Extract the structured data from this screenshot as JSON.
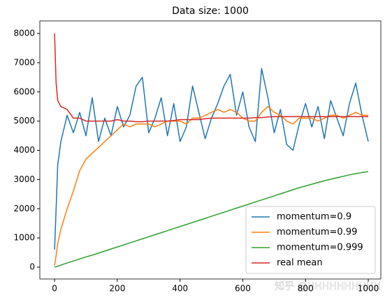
{
  "chart_data": {
    "type": "line",
    "title": "Data size: 1000",
    "x": [
      0,
      5,
      10,
      20,
      40,
      60,
      80,
      100,
      120,
      140,
      160,
      180,
      200,
      220,
      240,
      260,
      280,
      300,
      320,
      340,
      360,
      380,
      400,
      420,
      440,
      460,
      480,
      500,
      520,
      540,
      560,
      580,
      600,
      620,
      640,
      660,
      680,
      700,
      720,
      740,
      760,
      780,
      800,
      820,
      840,
      860,
      880,
      900,
      920,
      940,
      960,
      980,
      1000
    ],
    "series": [
      {
        "name": "momentum=0.9",
        "color": "#1f77b4",
        "values": [
          600,
          2000,
          3500,
          4300,
          5200,
          4600,
          5300,
          4500,
          5800,
          4300,
          5100,
          4500,
          5500,
          4800,
          5200,
          6200,
          6500,
          4600,
          5100,
          5800,
          4500,
          5600,
          4300,
          4800,
          6200,
          5300,
          4400,
          5100,
          5600,
          6200,
          6600,
          5200,
          6000,
          4800,
          4300,
          6800,
          5800,
          4600,
          5400,
          4200,
          4000,
          4900,
          5600,
          4800,
          5500,
          4400,
          5700,
          5100,
          4500,
          5600,
          6300,
          5200,
          4300
        ]
      },
      {
        "name": "momentum=0.99",
        "color": "#ff7f0e",
        "values": [
          50,
          400,
          800,
          1300,
          2000,
          2600,
          3300,
          3700,
          3900,
          4100,
          4300,
          4500,
          4700,
          4900,
          4800,
          4900,
          4900,
          4900,
          4800,
          4900,
          5000,
          5000,
          5000,
          4900,
          5100,
          5100,
          5200,
          5300,
          5400,
          5300,
          5400,
          5300,
          5100,
          5000,
          5000,
          5300,
          5500,
          5300,
          5200,
          5000,
          4900,
          5100,
          5100,
          5100,
          5000,
          5100,
          5200,
          5200,
          5100,
          5200,
          5300,
          5200,
          5200
        ]
      },
      {
        "name": "momentum=0.999",
        "color": "#2ca02c",
        "values": [
          0,
          15,
          30,
          70,
          140,
          210,
          280,
          350,
          410,
          480,
          550,
          620,
          690,
          760,
          830,
          900,
          970,
          1040,
          1110,
          1180,
          1250,
          1320,
          1390,
          1460,
          1530,
          1600,
          1670,
          1740,
          1810,
          1880,
          1950,
          2020,
          2090,
          2160,
          2230,
          2300,
          2370,
          2440,
          2510,
          2580,
          2650,
          2720,
          2780,
          2840,
          2900,
          2960,
          3010,
          3060,
          3110,
          3160,
          3200,
          3240,
          3270
        ]
      },
      {
        "name": "real mean",
        "color": "#d62728",
        "values": [
          8000,
          6300,
          5700,
          5500,
          5400,
          5100,
          5100,
          5000,
          5000,
          5000,
          5000,
          5000,
          5050,
          5000,
          5000,
          4980,
          4980,
          5000,
          5000,
          5000,
          5000,
          5020,
          5050,
          5050,
          5050,
          5050,
          5080,
          5100,
          5100,
          5100,
          5100,
          5100,
          5100,
          5100,
          5120,
          5120,
          5140,
          5150,
          5150,
          5150,
          5150,
          5150,
          5150,
          5150,
          5150,
          5150,
          5150,
          5150,
          5150,
          5150,
          5150,
          5150,
          5150
        ]
      }
    ],
    "xlim": [
      -47,
      1040
    ],
    "ylim": [
      -406,
      8430
    ],
    "xticks": [
      0,
      200,
      400,
      600,
      800,
      1000
    ],
    "yticks": [
      0,
      1000,
      2000,
      3000,
      4000,
      5000,
      6000,
      7000,
      8000
    ],
    "legend": "lower right",
    "annotation": "知乎 @HHHHHHHHHH"
  }
}
